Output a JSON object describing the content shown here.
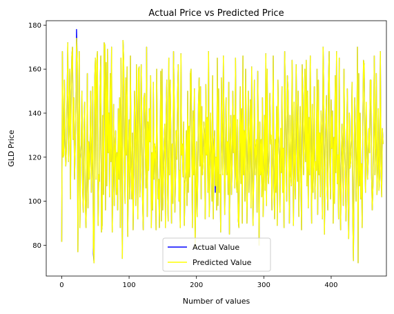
{
  "chart_data": {
    "type": "line",
    "title": "Actual Price vs Predicted Price",
    "xlabel": "Number of values",
    "ylabel": "GLD Price",
    "xlim": [
      -23,
      482
    ],
    "ylim": [
      66,
      182
    ],
    "xticks": [
      0,
      100,
      200,
      300,
      400
    ],
    "yticks": [
      80,
      100,
      120,
      140,
      160,
      180
    ],
    "grid": false,
    "legend_position": "lower-center",
    "series": [
      {
        "name": "Actual Value",
        "color": "#0000ff",
        "values": [
          81.5,
          168,
          120,
          121,
          155,
          128,
          116,
          125,
          148,
          172,
          118,
          135,
          160,
          101,
          150,
          166,
          170,
          128,
          147,
          110,
          124,
          142,
          178,
          163,
          77,
          130,
          168,
          88,
          119,
          126,
          150,
          106,
          95,
          131,
          145,
          101,
          88,
          109,
          158,
          97,
          127,
          110,
          125,
          150,
          104,
          119,
          152,
          76,
          72,
          155,
          165,
          110,
          162,
          168,
          89,
          112,
          109,
          152,
          166,
          86,
          89,
          139,
          103,
          172,
          171,
          96,
          163,
          107,
          169,
          122,
          140,
          102,
          158,
          118,
          170,
          86,
          113,
          144,
          98,
          125,
          132,
          103,
          122,
          96,
          142,
          110,
          147,
          88,
          165,
          121,
          74,
          173,
          164,
          120,
          99,
          156,
          121,
          161,
          84,
          115,
          137,
          101,
          166,
          115,
          101,
          131,
          87,
          112,
          150,
          129,
          98,
          162,
          135,
          92,
          160,
          161,
          102,
          113,
          162,
          133,
          101,
          87,
          147,
          149,
          125,
          106,
          170,
          93,
          136,
          114,
          142,
          127,
          157,
          88,
          122,
          96,
          154,
          110,
          126,
          122,
          87,
          160,
          121,
          101,
          110,
          88,
          115,
          159,
          91,
          160,
          96,
          111,
          126,
          135,
          88,
          139,
          155,
          108,
          91,
          165,
          112,
          155,
          132,
          90,
          126,
          99,
          168,
          145,
          95,
          112,
          132,
          119,
          148,
          162,
          100,
          114,
          88,
          167,
          121,
          126,
          111,
          136,
          89,
          108,
          111,
          132,
          98,
          150,
          104,
          134,
          111,
          158,
          160,
          125,
          88,
          141,
          112,
          151,
          79,
          104,
          127,
          93,
          112,
          144,
          156,
          116,
          152,
          101,
          143,
          112,
          118,
          136,
          130,
          92,
          153,
          121,
          138,
          104,
          168,
          93,
          112,
          140,
          120,
          100,
          157,
          92,
          124,
          132,
          104,
          120,
          96,
          165,
          98,
          151,
          104,
          112,
          86,
          156,
          128,
          112,
          166,
          132,
          94,
          120,
          147,
          112,
          127,
          103,
          154,
          85,
          124,
          139,
          103,
          117,
          150,
          122,
          139,
          106,
          165,
          113,
          104,
          137,
          92,
          88,
          123,
          152,
          108,
          142,
          90,
          166,
          112,
          132,
          100,
          160,
          127,
          90,
          119,
          150,
          104,
          126,
          146,
          97,
          161,
          118,
          89,
          113,
          155,
          112,
          124,
          128,
          95,
          159,
          125,
          80,
          136,
          112,
          128,
          102,
          147,
          93,
          113,
          139,
          105,
          167,
          98,
          160,
          115,
          108,
          121,
          149,
          126,
          128,
          96,
          118,
          166,
          107,
          92,
          128,
          104,
          143,
          89,
          155,
          130,
          120,
          95,
          133,
          113,
          152,
          104,
          124,
          88,
          168,
          146,
          118,
          100,
          157,
          150,
          123,
          90,
          139,
          112,
          107,
          164,
          126,
          89,
          145,
          117,
          101,
          162,
          135,
          109,
          150,
          93,
          120,
          143,
          112,
          87,
          162,
          148,
          112,
          124,
          160,
          118,
          164,
          107,
          150,
          97,
          138,
          112,
          166,
          123,
          90,
          144,
          104,
          120,
          152,
          101,
          118,
          114,
          160,
          94,
          155,
          112,
          131,
          102,
          141,
          130,
          92,
          170,
          151,
          85,
          116,
          135,
          148,
          107,
          96,
          153,
          168,
          118,
          101,
          146,
          124,
          141,
          90,
          129,
          99,
          157,
          113,
          168,
          108,
          121,
          92,
          165,
          112,
          87,
          116,
          135,
          120,
          98,
          160,
          128,
          112,
          91,
          127,
          151,
          104,
          83,
          140,
          115,
          118,
          128,
          154,
          96,
          73,
          112,
          147,
          132,
          100,
          121,
          170,
          72,
          158,
          107,
          140,
          101,
          117,
          88,
          135,
          164,
          162,
          127,
          104,
          141,
          128,
          110,
          119,
          133,
          122,
          155,
          155,
          112,
          96,
          107,
          132,
          166,
          112,
          125,
          158,
          103,
          117,
          142,
          105,
          112,
          168,
          115,
          102,
          133,
          126
        ],
        "deltas": [
          [
            22,
            4
          ],
          [
            47,
            -3
          ],
          [
            89,
            -2
          ],
          [
            228,
            -3
          ],
          [
            311,
            -2
          ],
          [
            425,
            -2
          ],
          [
            452,
            -4
          ]
        ]
      },
      {
        "name": "Predicted Value",
        "color": "#ffff00",
        "values_from": "Actual Value"
      }
    ]
  }
}
